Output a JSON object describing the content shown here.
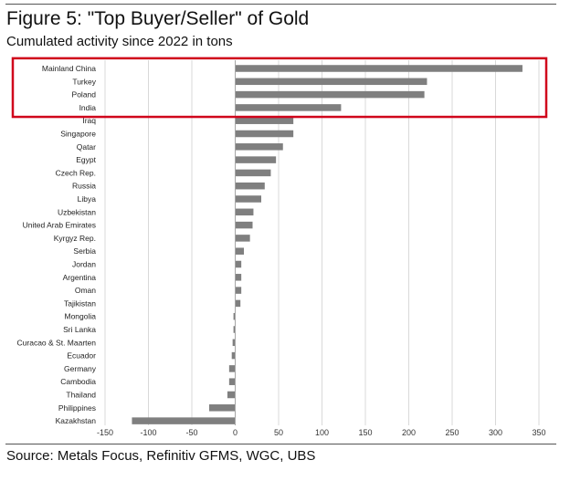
{
  "header": {
    "title": "Figure 5: \"Top Buyer/Seller\" of Gold",
    "subtitle": "Cumulated activity since 2022 in tons"
  },
  "footer": {
    "source": "Source: Metals Focus, Refinitiv GFMS, WGC, UBS"
  },
  "colors": {
    "bar": "#7f7f7f",
    "highlight_box": "#d0021b",
    "grid": "#d9d9d9",
    "axis": "#a6a6a6"
  },
  "chart_data": {
    "type": "bar",
    "orientation": "horizontal",
    "title": "Figure 5: \"Top Buyer/Seller\" of Gold",
    "subtitle": "Cumulated activity since 2022 in tons",
    "xlabel": "",
    "ylabel": "",
    "xlim": [
      -150,
      350
    ],
    "xticks": [
      -150,
      -100,
      -50,
      0,
      50,
      100,
      150,
      200,
      250,
      300,
      350
    ],
    "grid": true,
    "categories": [
      "Mainland China",
      "Turkey",
      "Poland",
      "India",
      "Iraq",
      "Singapore",
      "Qatar",
      "Egypt",
      "Czech Rep.",
      "Russia",
      "Libya",
      "Uzbekistan",
      "United Arab Emirates",
      "Kyrgyz Rep.",
      "Serbia",
      "Jordan",
      "Argentina",
      "Oman",
      "Tajikistan",
      "Mongolia",
      "Sri Lanka",
      "Curacao & St. Maarten",
      "Ecuador",
      "Germany",
      "Cambodia",
      "Thailand",
      "Philippines",
      "Kazakhstan"
    ],
    "values": [
      331,
      221,
      218,
      122,
      67,
      67,
      55,
      47,
      41,
      34,
      30,
      21,
      20,
      17,
      10,
      7,
      7,
      7,
      6,
      -2,
      -2,
      -3,
      -4,
      -7,
      -7,
      -9,
      -30,
      -119
    ],
    "highlighted": [
      "Mainland China",
      "Turkey",
      "Poland",
      "India"
    ],
    "annotation": "red box highlighting top four buyers"
  }
}
